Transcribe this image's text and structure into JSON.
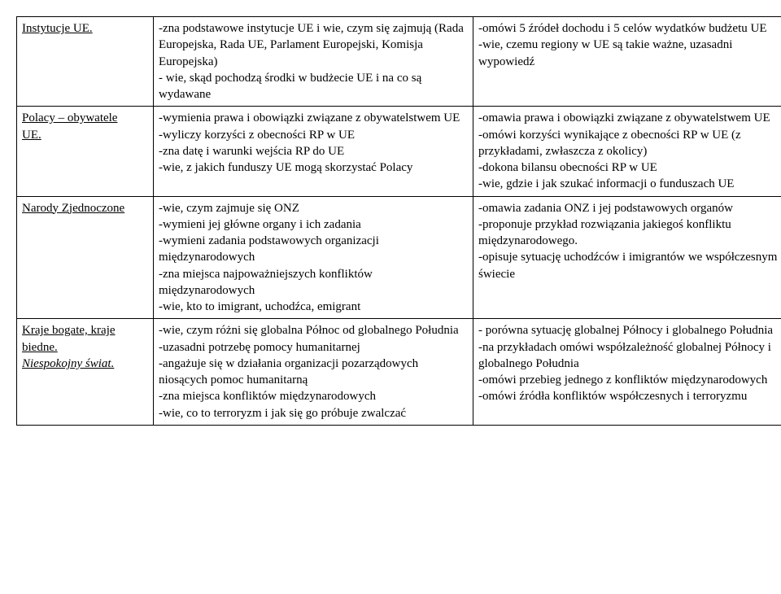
{
  "rows": [
    {
      "topic_html": "<span class=\"u\">Instytucje UE.</span>",
      "mid_html": "-zna podstawowe instytucje UE i wie, czym się zajmują (Rada Europejska, Rada UE, Parlament Europejski, Komisja Europejska)<br>- wie, skąd pochodzą środki w budżecie UE i na co są wydawane",
      "right_html": "-omówi 5 źródeł dochodu i 5 celów wydatków budżetu UE<br>-wie, czemu regiony w UE są takie ważne, uzasadni wypowiedź"
    },
    {
      "topic_html": "<span class=\"u\">Polacy – obywatele</span><br><span class=\"u\">UE.</span>",
      "mid_html": "-wymienia prawa i obowiązki związane z obywatelstwem UE<br>-wyliczy korzyści z obecności RP w UE<br>-zna datę i warunki wejścia RP do UE<br>-wie, z jakich funduszy UE mogą skorzystać Polacy",
      "right_html": "-omawia prawa i obowiązki związane z obywatelstwem UE<br>-omówi korzyści wynikające z obecności RP w UE (z przykładami, zwłaszcza z okolicy)<br>-dokona bilansu obecności RP w UE<br>-wie, gdzie i jak szukać informacji o funduszach UE"
    },
    {
      "topic_html": "<span class=\"u\">Narody Zjednoczone</span>",
      "mid_html": "-wie, czym zajmuje się ONZ<br>-wymieni jej główne organy i ich zadania<br>-wymieni zadania podstawowych organizacji międzynarodowych<br>-zna miejsca najpoważniejszych konfliktów międzynarodowych<br>-wie, kto to imigrant, uchodźca, emigrant",
      "right_html": "-omawia zadania ONZ i jej podstawowych organów<br>-proponuje przykład rozwiązania jakiegoś konfliktu międzynarodowego.<br>-opisuje sytuację uchodźców i imigrantów we współczesnym świecie"
    },
    {
      "topic_html": "<span class=\"u\">Kraje bogate, kraje</span><br><span class=\"u\">biedne.</span><br><span class=\"u\"><i>Niespokojny świat.</i></span>",
      "mid_html": "-wie, czym różni się globalna Północ od globalnego Południa<br>-uzasadni potrzebę pomocy humanitarnej<br>-angażuje się w działania organizacji pozarządowych niosących pomoc humanitarną<br>-zna miejsca konfliktów międzynarodowych<br>-wie, co to terroryzm i jak się go próbuje zwalczać",
      "right_html": "- porówna sytuację globalnej Północy i globalnego Południa<br>-na przykładach omówi współzależność globalnej Północy i globalnego Południa<br>-omówi przebieg jednego z konfliktów międzynarodowych<br>-omówi źródła konfliktów współczesnych i terroryzmu"
    }
  ]
}
